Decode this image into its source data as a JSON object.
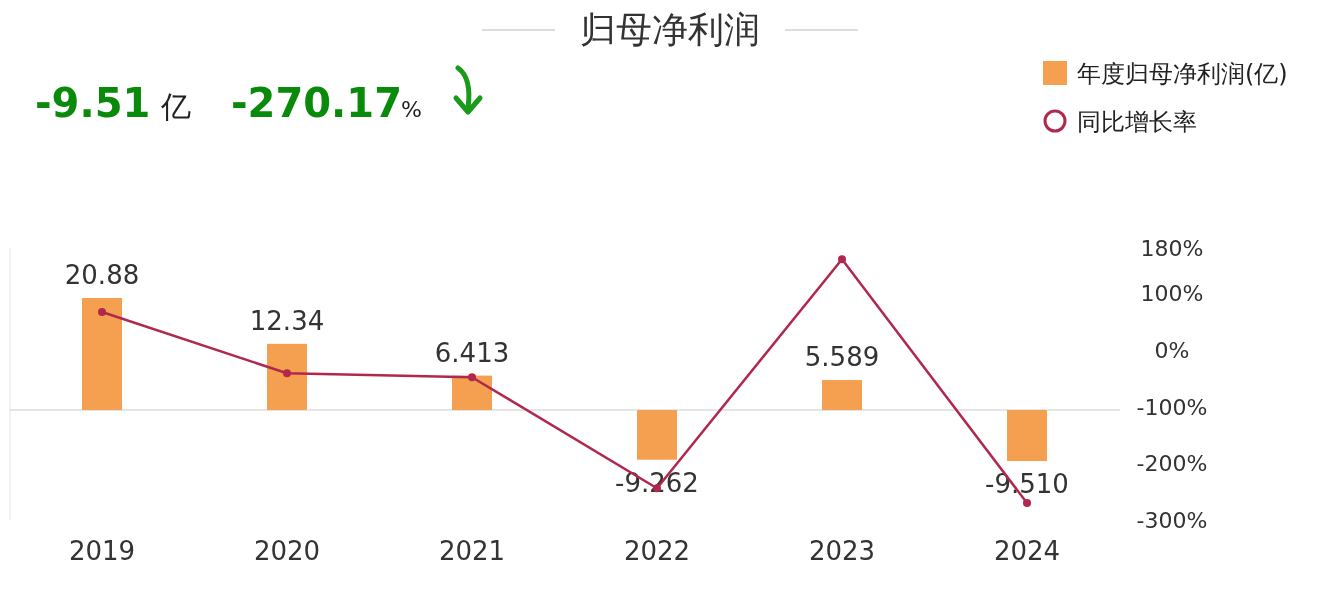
{
  "chart_data": {
    "type": "bar",
    "title": "归母净利润",
    "annotations": [
      "-9.51",
      "亿",
      "-270.17",
      "%"
    ],
    "categories": [
      "2019",
      "2020",
      "2021",
      "2022",
      "2023",
      "2024"
    ],
    "ylim": [
      -20.5,
      30.2
    ],
    "y2lim": [
      -300,
      180
    ],
    "y2ticks": [
      {
        "value": 180,
        "label": "180%"
      },
      {
        "value": 100,
        "label": "100%"
      },
      {
        "value": 0,
        "label": "0%"
      },
      {
        "value": -100,
        "label": "-100%"
      },
      {
        "value": -200,
        "label": "-200%"
      },
      {
        "value": -300,
        "label": "-300%"
      }
    ],
    "series": [
      {
        "name": "年度归母净利润(亿)",
        "color": "#f5a050",
        "values": [
          20.88,
          12.34,
          6.413,
          -9.262,
          5.589,
          -9.51
        ],
        "value_labels": [
          "20.88",
          "12.34",
          "6.413",
          "-9.262",
          "5.589",
          "-9.510"
        ]
      },
      {
        "name": "同比增长率",
        "type": "line",
        "axis": "y2",
        "color": "#b0284e",
        "values": [
          67,
          -41,
          -48,
          -244,
          160,
          -270
        ]
      }
    ],
    "legend": "top right",
    "marker": "circle",
    "line_style": "solid",
    "grid": false
  }
}
